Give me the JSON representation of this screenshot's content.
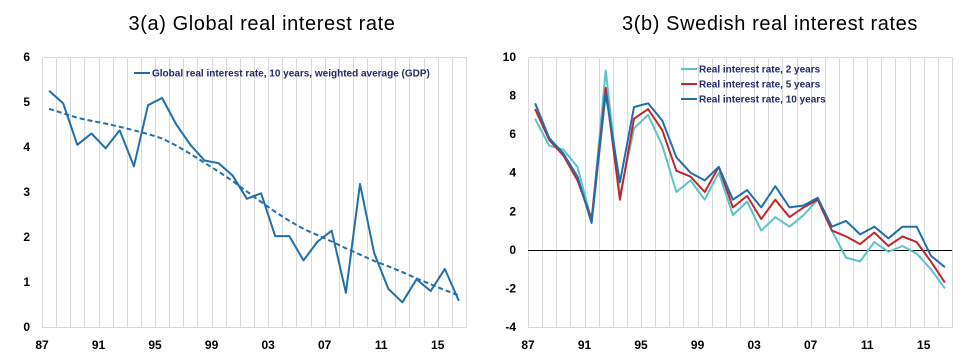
{
  "chart_data": [
    {
      "type": "line",
      "title": "3(a) Global real interest rate",
      "xlabel": "",
      "ylabel": "",
      "x_tick_labels": [
        "87",
        "91",
        "95",
        "99",
        "03",
        "07",
        "11",
        "15"
      ],
      "y_tick_labels": [
        "0",
        "1",
        "2",
        "3",
        "4",
        "5",
        "6"
      ],
      "xlim": [
        1987,
        2017
      ],
      "ylim": [
        0,
        6
      ],
      "grid": "vertical",
      "legend_position": "top-right",
      "x": [
        1987.5,
        1988.5,
        1989.5,
        1990.5,
        1991.5,
        1992.5,
        1993.5,
        1994.5,
        1995.5,
        1996.5,
        1997.5,
        1998.5,
        1999.5,
        2000.5,
        2001.5,
        2002.5,
        2003.5,
        2004.5,
        2005.5,
        2006.5,
        2007.5,
        2008.5,
        2009.5,
        2010.5,
        2011.5,
        2012.5,
        2013.5,
        2014.5,
        2015.5,
        2016.5
      ],
      "series": [
        {
          "name": "Global real interest rate, 10 years, weighted average (GDP)",
          "color": "#1f6fad",
          "style": "solid",
          "values": [
            5.25,
            4.97,
            4.05,
            4.3,
            3.97,
            4.37,
            3.57,
            4.93,
            5.09,
            4.5,
            4.05,
            3.7,
            3.64,
            3.36,
            2.85,
            2.97,
            2.02,
            2.02,
            1.48,
            1.9,
            2.14,
            0.76,
            3.18,
            1.65,
            0.85,
            0.55,
            1.06,
            0.8,
            1.29,
            0.58
          ]
        },
        {
          "name": "",
          "color": "#1f6fad",
          "style": "dashed",
          "values": [
            4.85,
            4.75,
            4.65,
            4.58,
            4.52,
            4.45,
            4.37,
            4.29,
            4.19,
            4.03,
            3.85,
            3.65,
            3.45,
            3.24,
            3.01,
            2.78,
            2.56,
            2.36,
            2.18,
            2.04,
            1.9,
            1.75,
            1.61,
            1.47,
            1.35,
            1.22,
            1.08,
            0.95,
            0.82,
            0.7
          ]
        }
      ]
    },
    {
      "type": "line",
      "title": "3(b) Swedish real interest rates",
      "xlabel": "",
      "ylabel": "",
      "x_tick_labels": [
        "87",
        "91",
        "95",
        "99",
        "03",
        "07",
        "11",
        "15"
      ],
      "y_tick_labels": [
        "-4",
        "-2",
        "0",
        "2",
        "4",
        "6",
        "8",
        "10"
      ],
      "xlim": [
        1987,
        2017
      ],
      "ylim": [
        -4,
        10
      ],
      "grid": "vertical",
      "legend_position": "top-center",
      "x": [
        1987.5,
        1988.5,
        1989.5,
        1990.5,
        1991.5,
        1992.5,
        1993.5,
        1994.5,
        1995.5,
        1996.5,
        1997.5,
        1998.5,
        1999.5,
        2000.5,
        2001.5,
        2002.5,
        2003.5,
        2004.5,
        2005.5,
        2006.5,
        2007.5,
        2008.5,
        2009.5,
        2010.5,
        2011.5,
        2012.5,
        2013.5,
        2014.5,
        2015.5,
        2016.5
      ],
      "series": [
        {
          "name": "Real interest rate, 2 years",
          "color": "#5bc4c9",
          "values": [
            6.8,
            5.4,
            5.2,
            4.3,
            1.5,
            9.3,
            2.8,
            6.3,
            7.0,
            5.4,
            3.0,
            3.6,
            2.6,
            4.0,
            1.8,
            2.5,
            1.0,
            1.7,
            1.2,
            1.8,
            2.6,
            1.0,
            -0.4,
            -0.6,
            0.4,
            -0.1,
            0.2,
            -0.2,
            -1.0,
            -2.0
          ]
        },
        {
          "name": "Real interest rate, 5 years",
          "color": "#c0272d",
          "values": [
            7.3,
            5.7,
            4.9,
            3.6,
            1.6,
            8.4,
            2.6,
            6.8,
            7.3,
            6.2,
            4.1,
            3.8,
            3.0,
            4.3,
            2.2,
            2.8,
            1.6,
            2.6,
            1.7,
            2.2,
            2.6,
            1.0,
            0.7,
            0.3,
            0.9,
            0.2,
            0.7,
            0.4,
            -0.6,
            -1.7
          ]
        },
        {
          "name": "Real interest rate, 10 years",
          "color": "#1f6fad",
          "values": [
            7.6,
            5.8,
            5.0,
            3.8,
            1.4,
            8.1,
            3.5,
            7.4,
            7.6,
            6.7,
            4.8,
            4.0,
            3.6,
            4.3,
            2.6,
            3.1,
            2.2,
            3.3,
            2.2,
            2.3,
            2.7,
            1.2,
            1.5,
            0.8,
            1.2,
            0.6,
            1.2,
            1.2,
            -0.3,
            -0.9
          ]
        }
      ]
    }
  ]
}
